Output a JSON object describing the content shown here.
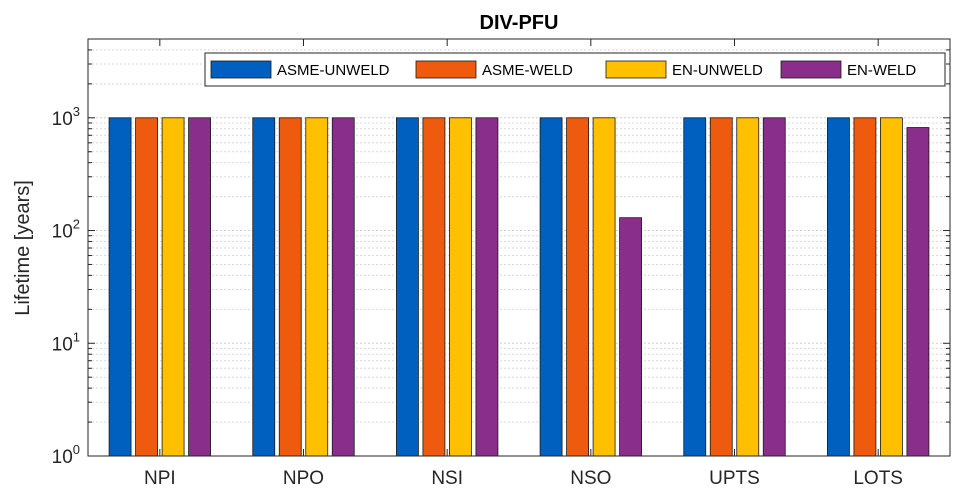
{
  "chart_data": {
    "type": "bar",
    "title": "DIV-PFU",
    "xlabel": "",
    "ylabel": "Lifetime [years]",
    "yscale": "log",
    "ylim": [
      1,
      5000
    ],
    "yticks": [
      {
        "base": "10",
        "exp": "0"
      },
      {
        "base": "10",
        "exp": "1"
      },
      {
        "base": "10",
        "exp": "2"
      },
      {
        "base": "10",
        "exp": "3"
      }
    ],
    "grid": true,
    "legend_position": "top-right",
    "categories": [
      "NPI",
      "NPO",
      "NSI",
      "NSO",
      "UPTS",
      "LOTS"
    ],
    "series": [
      {
        "name": "ASME-UNWELD",
        "color": "#0060c0",
        "values": [
          1000,
          1000,
          1000,
          1000,
          1000,
          1000
        ]
      },
      {
        "name": "ASME-WELD",
        "color": "#ee5a0e",
        "values": [
          1000,
          1000,
          1000,
          1000,
          1000,
          1000
        ]
      },
      {
        "name": "EN-UNWELD",
        "color": "#ffc000",
        "values": [
          1000,
          1000,
          1000,
          1000,
          1000,
          1000
        ]
      },
      {
        "name": "EN-WELD",
        "color": "#8a2e8c",
        "values": [
          1000,
          1000,
          1000,
          130,
          1000,
          820
        ]
      }
    ]
  }
}
